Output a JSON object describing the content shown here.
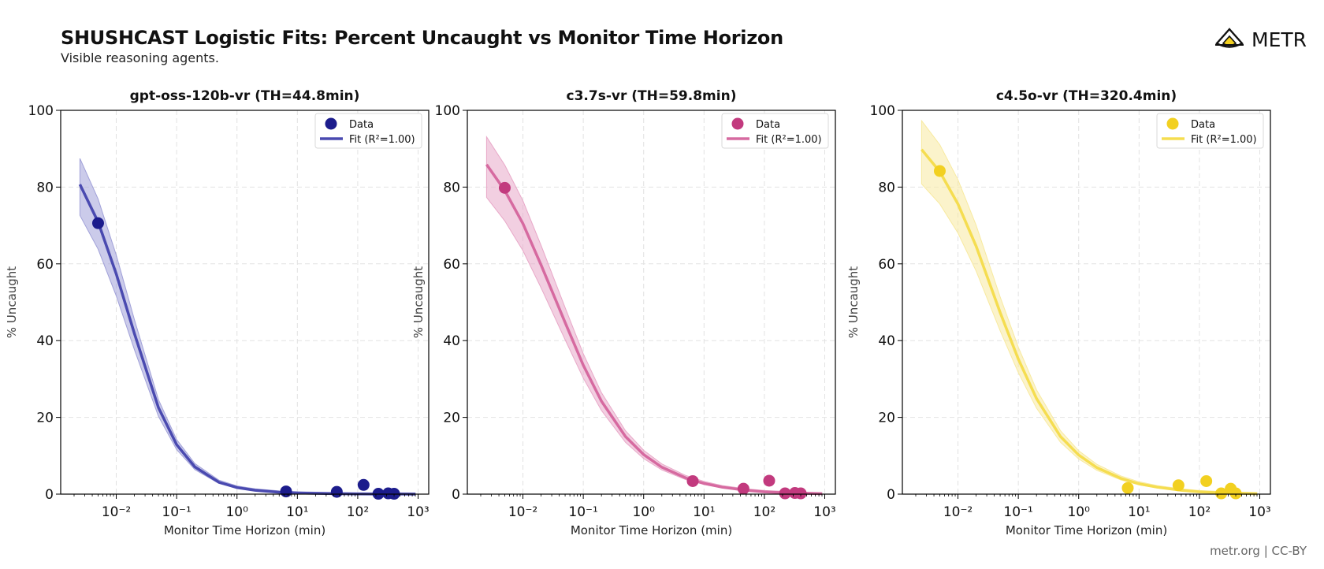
{
  "header": {
    "title": "SHUSHCAST Logistic Fits: Percent Uncaught vs Monitor Time Horizon",
    "subtitle": "Visible reasoning agents."
  },
  "logo": {
    "text": "METR",
    "icon": "metr-logo-icon"
  },
  "footer": {
    "text": "metr.org | CC-BY"
  },
  "chart_data": [
    {
      "type": "scatter",
      "title": "gpt-oss-120b-vr (TH=44.8min)",
      "xlabel": "Monitor Time Horizon (min)",
      "ylabel": "% Uncaught",
      "xscale": "log",
      "xlim": [
        0.0012,
        1500
      ],
      "ylim": [
        0,
        100
      ],
      "xticks": [
        "10⁻²",
        "10⁻¹",
        "10⁰",
        "10¹",
        "10²",
        "10³"
      ],
      "yticks": [
        0,
        20,
        40,
        60,
        80,
        100
      ],
      "grid": true,
      "legend_position": "top-right",
      "color": "#1c1c8c",
      "fit_color": "#4a4ab0",
      "band_color": "#a0a0d8",
      "legend": [
        "Data",
        "Fit (R²=1.00)"
      ],
      "series": [
        {
          "name": "Data",
          "x": [
            0.005,
            6.5,
            45,
            125,
            220,
            320,
            400
          ],
          "y": [
            70.6,
            0.7,
            0.6,
            2.4,
            0.1,
            0.2,
            0.1
          ]
        }
      ],
      "fit": {
        "x": [
          0.0025,
          0.005,
          0.01,
          0.02,
          0.05,
          0.1,
          0.2,
          0.5,
          1,
          2,
          5,
          10,
          20,
          50,
          100,
          200,
          500,
          900
        ],
        "y": [
          80.7,
          70.9,
          57.4,
          41.8,
          22.5,
          12.9,
          7.1,
          3.1,
          1.7,
          1.0,
          0.5,
          0.3,
          0.2,
          0.1,
          0.05,
          0.03,
          0.02,
          0.01
        ]
      }
    },
    {
      "type": "scatter",
      "title": "c3.7s-vr (TH=59.8min)",
      "xlabel": "Monitor Time Horizon (min)",
      "ylabel": "% Uncaught",
      "xscale": "log",
      "xlim": [
        0.0012,
        1500
      ],
      "ylim": [
        0,
        100
      ],
      "xticks": [
        "10⁻²",
        "10⁻¹",
        "10⁰",
        "10¹",
        "10²",
        "10³"
      ],
      "yticks": [
        0,
        20,
        40,
        60,
        80,
        100
      ],
      "grid": true,
      "legend_position": "top-right",
      "color": "#c23a7e",
      "fit_color": "#d66aa0",
      "band_color": "#e8a8c8",
      "legend": [
        "Data",
        "Fit (R²=1.00)"
      ],
      "series": [
        {
          "name": "Data",
          "x": [
            0.005,
            6.5,
            45,
            120,
            220,
            320,
            400
          ],
          "y": [
            79.8,
            3.4,
            1.4,
            3.5,
            0.2,
            0.3,
            0.2
          ]
        }
      ],
      "fit": {
        "x": [
          0.0025,
          0.005,
          0.01,
          0.02,
          0.05,
          0.1,
          0.2,
          0.5,
          1,
          2,
          5,
          10,
          20,
          50,
          100,
          200,
          500,
          900
        ],
        "y": [
          85.9,
          79.1,
          70.5,
          59.7,
          44.7,
          33.6,
          24.2,
          15.0,
          10.3,
          7.0,
          4.2,
          2.8,
          1.8,
          1.0,
          0.6,
          0.4,
          0.2,
          0.1
        ]
      }
    },
    {
      "type": "scatter",
      "title": "c4.5o-vr (TH=320.4min)",
      "xlabel": "Monitor Time Horizon (min)",
      "ylabel": "% Uncaught",
      "xscale": "log",
      "xlim": [
        0.0012,
        1500
      ],
      "ylim": [
        0,
        100
      ],
      "xticks": [
        "10⁻²",
        "10⁻¹",
        "10⁰",
        "10¹",
        "10²",
        "10³"
      ],
      "yticks": [
        0,
        20,
        40,
        60,
        80,
        100
      ],
      "grid": true,
      "legend_position": "top-right",
      "color": "#f2d020",
      "fit_color": "#f5dd50",
      "band_color": "#f8eaa0",
      "legend": [
        "Data",
        "Fit (R²=1.00)"
      ],
      "series": [
        {
          "name": "Data",
          "x": [
            0.005,
            6.5,
            45,
            130,
            230,
            330,
            400
          ],
          "y": [
            84.2,
            1.6,
            2.3,
            3.4,
            0.2,
            1.4,
            0.2
          ]
        }
      ],
      "fit": {
        "x": [
          0.0025,
          0.005,
          0.01,
          0.02,
          0.05,
          0.1,
          0.2,
          0.5,
          1,
          2,
          5,
          10,
          20,
          50,
          100,
          200,
          500,
          900
        ],
        "y": [
          89.8,
          84.0,
          75.6,
          64.6,
          47.3,
          35.2,
          24.9,
          15.0,
          10.2,
          6.9,
          4.1,
          2.7,
          1.8,
          1.0,
          0.6,
          0.4,
          0.2,
          0.1
        ]
      }
    }
  ]
}
